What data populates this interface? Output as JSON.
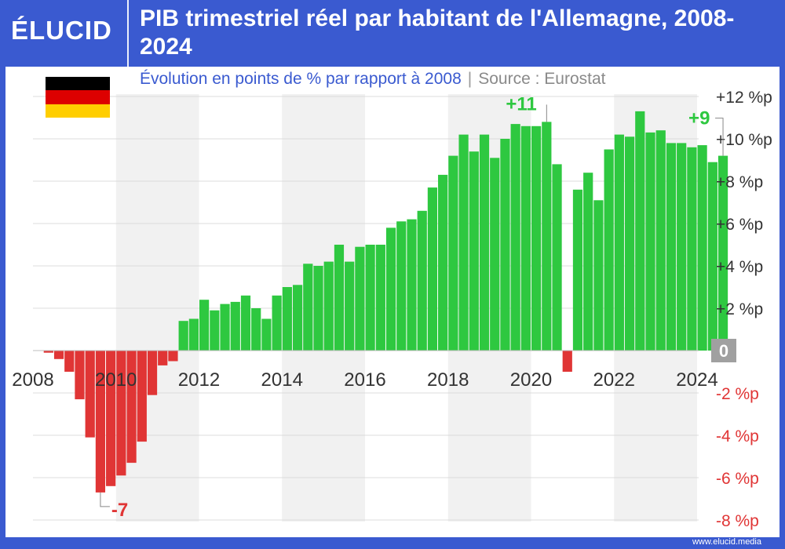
{
  "brand": {
    "logo": "ÉLUCID",
    "footer": "www.elucid.media"
  },
  "header": {
    "title": "PIB trimestriel réel par habitant de l'Allemagne, 2008-2024"
  },
  "subtitle": {
    "main": "Évolution en points de % par rapport à 2008",
    "separator": "|",
    "source": "Source : Eurostat"
  },
  "colors": {
    "positive": "#2ec840",
    "negative": "#e03535",
    "brand": "#3a5ad0",
    "zero_badge": "#a0a0a0"
  },
  "chart_data": {
    "type": "bar",
    "title": "PIB trimestriel réel par habitant de l'Allemagne, 2008-2024",
    "subtitle": "Évolution en points de % par rapport à 2008",
    "source": "Eurostat",
    "x_tick_labels": [
      "2008",
      "2010",
      "2012",
      "2014",
      "2016",
      "2018",
      "2020",
      "2022",
      "2024"
    ],
    "y_tick_labels": [
      "+12 %p",
      "+10 %p",
      "+8 %p",
      "+6 %p",
      "+4 %p",
      "+2 %p",
      "0",
      "-2 %p",
      "-4 %p",
      "-6 %p",
      "-8 %p"
    ],
    "ylim": [
      -8,
      12
    ],
    "grid": true,
    "start_quarter": "2008-Q2",
    "values": [
      -0.1,
      -0.4,
      -1.0,
      -2.3,
      -4.1,
      -6.7,
      -6.4,
      -5.9,
      -5.3,
      -4.3,
      -2.1,
      -0.7,
      -0.5,
      1.4,
      1.5,
      2.4,
      1.9,
      2.2,
      2.3,
      2.6,
      2.0,
      1.5,
      2.6,
      3.0,
      3.1,
      4.1,
      4.0,
      4.2,
      5.0,
      4.2,
      4.9,
      5.0,
      5.0,
      5.8,
      6.1,
      6.2,
      6.6,
      7.7,
      8.3,
      9.2,
      10.2,
      9.4,
      10.2,
      9.1,
      10.0,
      10.7,
      10.6,
      10.6,
      10.8,
      8.8,
      -1.0,
      7.6,
      8.4,
      7.1,
      9.5,
      10.2,
      10.1,
      11.3,
      10.3,
      10.4,
      9.8,
      9.8,
      9.6,
      9.7,
      8.9,
      9.2
    ],
    "annotations": [
      {
        "text": "-7",
        "value": -6.7,
        "index": 5,
        "color": "negative"
      },
      {
        "text": "+11",
        "value": 10.8,
        "index": 48,
        "color": "positive"
      },
      {
        "text": "+9",
        "value": 9.2,
        "index": 65,
        "color": "positive"
      }
    ]
  }
}
